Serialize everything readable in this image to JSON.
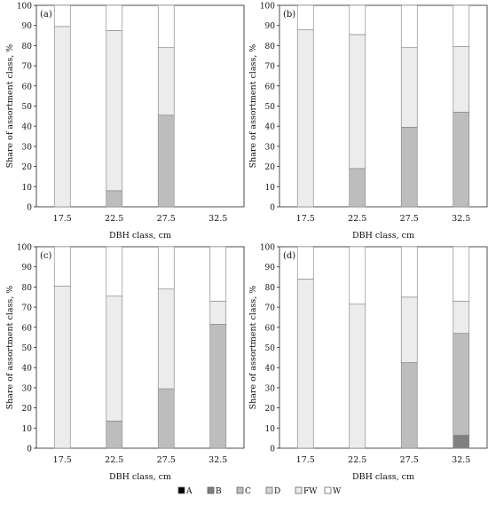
{
  "colors": {
    "A": "#000000",
    "B": "#808080",
    "C": "#bdbdbd",
    "D": "#d4d4d4",
    "FW": "#ececec",
    "W": "#ffffff",
    "stroke": "#8c8c8c",
    "axis": "#222222"
  },
  "legend": {
    "position": "bottom-center",
    "items": [
      {
        "key": "A",
        "label": "A"
      },
      {
        "key": "B",
        "label": "B"
      },
      {
        "key": "C",
        "label": "C"
      },
      {
        "key": "D",
        "label": "D"
      },
      {
        "key": "FW",
        "label": "FW"
      },
      {
        "key": "W",
        "label": "W"
      }
    ]
  },
  "chart_data": [
    {
      "type": "bar",
      "stacked": true,
      "panel_label": "(a)",
      "xlabel": "DBH class, cm",
      "ylabel": "Share of assortment class, %",
      "ylim": [
        0,
        100
      ],
      "yticks": [
        0,
        10,
        20,
        30,
        40,
        50,
        60,
        70,
        80,
        90,
        100
      ],
      "categories": [
        "17.5",
        "22.5",
        "27.5",
        "32.5"
      ],
      "series": [
        {
          "name": "A",
          "values": [
            0,
            0,
            0,
            0
          ]
        },
        {
          "name": "B",
          "values": [
            0,
            0,
            0,
            0
          ]
        },
        {
          "name": "C",
          "values": [
            0,
            8,
            45.5,
            0
          ]
        },
        {
          "name": "D",
          "values": [
            0,
            0,
            0,
            0
          ]
        },
        {
          "name": "FW",
          "values": [
            89.5,
            79.5,
            33.5,
            0
          ]
        },
        {
          "name": "W",
          "values": [
            10.5,
            12.5,
            21,
            0
          ]
        }
      ]
    },
    {
      "type": "bar",
      "stacked": true,
      "panel_label": "(b)",
      "xlabel": "DBH class, cm",
      "ylabel": "Share of assortment class, %",
      "ylim": [
        0,
        100
      ],
      "yticks": [
        0,
        10,
        20,
        30,
        40,
        50,
        60,
        70,
        80,
        90,
        100
      ],
      "categories": [
        "17.5",
        "22.5",
        "27.5",
        "32.5"
      ],
      "series": [
        {
          "name": "A",
          "values": [
            0,
            0,
            0,
            0
          ]
        },
        {
          "name": "B",
          "values": [
            0,
            0,
            0,
            0
          ]
        },
        {
          "name": "C",
          "values": [
            0,
            19,
            39.5,
            47
          ]
        },
        {
          "name": "D",
          "values": [
            0,
            0,
            0,
            0
          ]
        },
        {
          "name": "FW",
          "values": [
            88,
            66.5,
            39.5,
            32.5
          ]
        },
        {
          "name": "W",
          "values": [
            12,
            14.5,
            21,
            20.5
          ]
        }
      ]
    },
    {
      "type": "bar",
      "stacked": true,
      "panel_label": "(c)",
      "xlabel": "DBH class, cm",
      "ylabel": "Share of assortment class, %",
      "ylim": [
        0,
        100
      ],
      "yticks": [
        0,
        10,
        20,
        30,
        40,
        50,
        60,
        70,
        80,
        90,
        100
      ],
      "categories": [
        "17.5",
        "22.5",
        "27.5",
        "32.5"
      ],
      "series": [
        {
          "name": "A",
          "values": [
            0,
            0,
            0,
            0
          ]
        },
        {
          "name": "B",
          "values": [
            0,
            0,
            0,
            0
          ]
        },
        {
          "name": "C",
          "values": [
            0,
            13.5,
            29.5,
            61.5
          ]
        },
        {
          "name": "D",
          "values": [
            0,
            0,
            0,
            0
          ]
        },
        {
          "name": "FW",
          "values": [
            80.5,
            62,
            49.5,
            11.5
          ]
        },
        {
          "name": "W",
          "values": [
            19.5,
            24.5,
            21,
            27
          ]
        }
      ]
    },
    {
      "type": "bar",
      "stacked": true,
      "panel_label": "(d)",
      "xlabel": "DBH class, cm",
      "ylabel": "Share of assortment class, %",
      "ylim": [
        0,
        100
      ],
      "yticks": [
        0,
        10,
        20,
        30,
        40,
        50,
        60,
        70,
        80,
        90,
        100
      ],
      "categories": [
        "17.5",
        "22.5",
        "27.5",
        "32.5"
      ],
      "series": [
        {
          "name": "A",
          "values": [
            0,
            0,
            0,
            0
          ]
        },
        {
          "name": "B",
          "values": [
            0,
            0,
            0,
            6.5
          ]
        },
        {
          "name": "C",
          "values": [
            0,
            0,
            42.5,
            50.5
          ]
        },
        {
          "name": "D",
          "values": [
            0,
            0,
            0,
            0
          ]
        },
        {
          "name": "FW",
          "values": [
            84,
            71.5,
            32.5,
            16
          ]
        },
        {
          "name": "W",
          "values": [
            16,
            28.5,
            25,
            27
          ]
        }
      ]
    }
  ]
}
